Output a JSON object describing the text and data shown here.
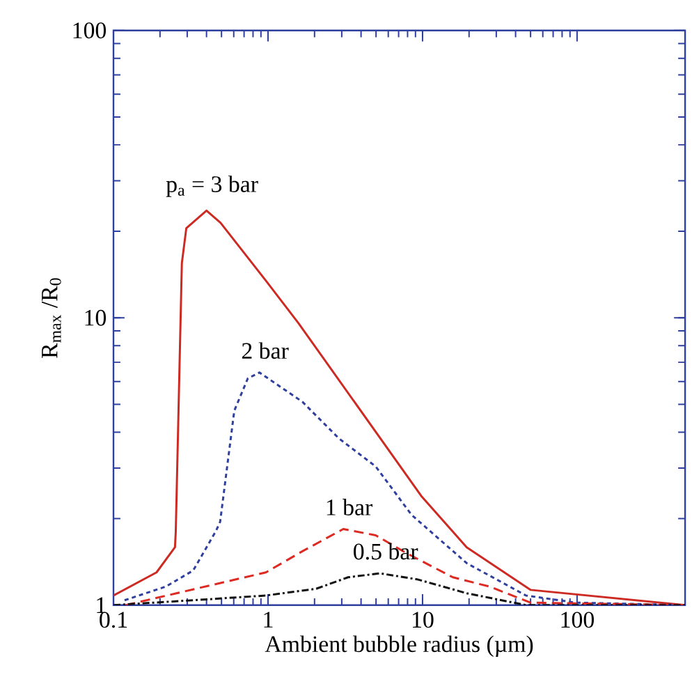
{
  "chart_data": {
    "type": "line",
    "xlabel": "Ambient bubble radius (µm)",
    "ylabel": "R$_{max}$ /R$_{0}$",
    "log": "xy",
    "xlim": [
      0.1,
      500
    ],
    "ylim": [
      1,
      100
    ],
    "xticks": [
      0.1,
      1,
      10,
      100
    ],
    "yticks": [
      1,
      10,
      100
    ],
    "grid": false,
    "marker": "none",
    "series": [
      {
        "color": "#cc2a22",
        "line_style": "solid",
        "x": [
          0.1,
          0.19,
          0.25,
          0.253,
          0.277,
          0.296,
          0.4,
          0.493,
          0.976,
          1.57,
          9.8,
          19.3,
          49.9,
          500
        ],
        "values": [
          1.08,
          1.3,
          1.59,
          1.81,
          15.5,
          20.5,
          23.6,
          21.4,
          13.4,
          9.6,
          2.4,
          1.59,
          1.13,
          1.0
        ]
      },
      {
        "color": "#2e3f9e",
        "line_style": "dotted",
        "x": [
          0.118,
          0.218,
          0.328,
          0.46,
          0.49,
          0.605,
          0.74,
          0.88,
          1.67,
          2.88,
          4.97,
          8.5,
          19.3,
          46.7,
          98,
          500
        ],
        "values": [
          1.04,
          1.16,
          1.32,
          1.81,
          1.95,
          4.75,
          6.15,
          6.45,
          5.1,
          3.8,
          3.04,
          2.06,
          1.4,
          1.08,
          1.02,
          1.0
        ]
      },
      {
        "color": "#dd2a22",
        "line_style": "dashed",
        "x": [
          0.12,
          0.97,
          1.67,
          3.07,
          4.97,
          8.0,
          15.7,
          27.2,
          49.9,
          500
        ],
        "values": [
          1.0,
          1.3,
          1.54,
          1.84,
          1.75,
          1.51,
          1.25,
          1.16,
          1.02,
          1.0
        ]
      },
      {
        "color": "#111111",
        "line_style": "dashdot",
        "x": [
          0.1,
          0.328,
          0.97,
          2.05,
          3.3,
          5.3,
          9.2,
          19.3,
          46.7,
          500
        ],
        "values": [
          1.0,
          1.04,
          1.08,
          1.14,
          1.25,
          1.29,
          1.23,
          1.1,
          1.0,
          1.0
        ]
      }
    ],
    "annotations": [
      "p$_{a}$ = 3 bar",
      "2 bar",
      "1 bar",
      "0.5 bar"
    ]
  }
}
